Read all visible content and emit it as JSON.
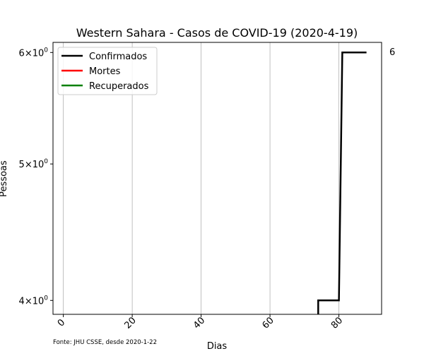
{
  "chart_data": {
    "type": "line",
    "title": "Western Sahara - Casos de COVID-19 (2020-4-19)",
    "xlabel": "Dias",
    "ylabel": "Pessoas",
    "source_note": "Fonte: JHU CSSE, desde 2020-1-22",
    "x_ticks": [
      0,
      20,
      40,
      60,
      80
    ],
    "y_scale": "log",
    "y_ticks": [
      {
        "value": 4,
        "label_base": "4",
        "label_mid": "×",
        "label_pow": "10",
        "label_exp": "0"
      },
      {
        "value": 5,
        "label_base": "5",
        "label_mid": "×",
        "label_pow": "10",
        "label_exp": "0"
      },
      {
        "value": 6,
        "label_base": "6",
        "label_mid": "×",
        "label_pow": "10",
        "label_exp": "0"
      }
    ],
    "xlim": [
      -3,
      92.4
    ],
    "ylim": [
      3.91,
      6.1
    ],
    "grid": "x",
    "legend_position": "top-left",
    "end_label": "6",
    "series": [
      {
        "name": "Confirmados",
        "color": "#000000",
        "x": [
          74,
          74,
          80,
          81,
          88
        ],
        "y": [
          3.91,
          4,
          4,
          6,
          6
        ]
      },
      {
        "name": "Mortes",
        "color": "#ff0000",
        "x": [],
        "y": []
      },
      {
        "name": "Recuperados",
        "color": "#008000",
        "x": [],
        "y": []
      }
    ]
  }
}
